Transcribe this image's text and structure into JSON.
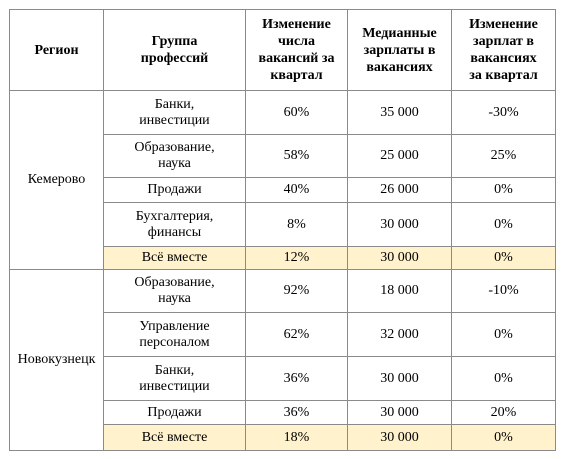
{
  "table": {
    "header": [
      "Регион",
      "Группа\nпрофессий",
      "Изменение\nчисла\nвакансий за\nквартал",
      "Медианные\nзарплаты в\nвакансиях",
      "Изменение\nзарплат в\nвакансиях\nза квартал"
    ],
    "groups": [
      {
        "region": "Кемерово",
        "rows": [
          [
            "Банки,\nинвестиции",
            "60%",
            "35 000",
            "-30%"
          ],
          [
            "Образование,\nнаука",
            "58%",
            "25 000",
            "25%"
          ],
          [
            "Продажи",
            "40%",
            "26 000",
            "0%"
          ],
          [
            "Бухгалтерия,\nфинансы",
            "8%",
            "30 000",
            "0%"
          ],
          [
            "Всё вместе",
            "12%",
            "30 000",
            "0%"
          ]
        ]
      },
      {
        "region": "Новокузнецк",
        "rows": [
          [
            "Образование,\nнаука",
            "92%",
            "18 000",
            "-10%"
          ],
          [
            "Управление\nперсоналом",
            "62%",
            "32 000",
            "0%"
          ],
          [
            "Банки,\nинвестиции",
            "36%",
            "30 000",
            "0%"
          ],
          [
            "Продажи",
            "36%",
            "30 000",
            "20%"
          ],
          [
            "Всё вместе",
            "18%",
            "30 000",
            "0%"
          ]
        ]
      }
    ]
  }
}
